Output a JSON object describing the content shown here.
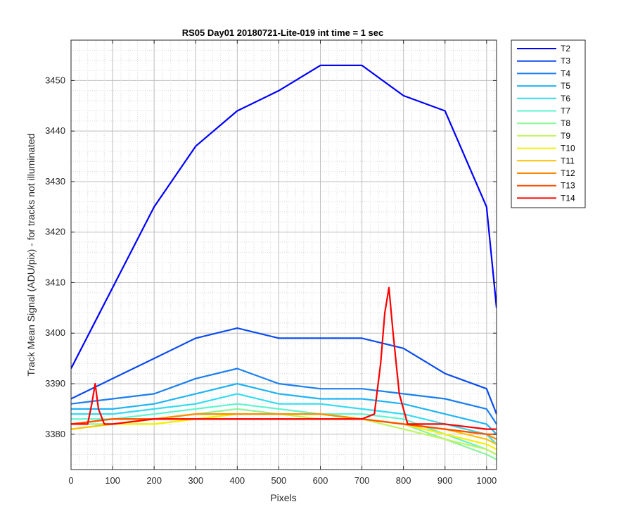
{
  "chart_data": {
    "type": "line",
    "title": "RS05 Day01 20180721-Lite-019 int time = 1 sec",
    "xlabel": "Pixels",
    "ylabel": "Track Mean Signal (ADU/pix) - for tracks not illuminated",
    "xlim": [
      0,
      1024
    ],
    "ylim": [
      3373,
      3458
    ],
    "x_ticks": [
      "0",
      "100",
      "200",
      "300",
      "400",
      "500",
      "600",
      "700",
      "800",
      "900",
      "1000"
    ],
    "y_ticks": [
      "3380",
      "3390",
      "3400",
      "3410",
      "3420",
      "3430",
      "3440",
      "3450"
    ],
    "grid": "major and minor (dotted)",
    "legend_position": "outside right, top",
    "series": [
      {
        "name": "T2",
        "color": "#0000ff",
        "x": [
          0,
          100,
          200,
          300,
          400,
          500,
          600,
          700,
          800,
          900,
          1000,
          1024
        ],
        "values": [
          3393,
          3409,
          3425,
          3437,
          3444,
          3448,
          3453,
          3453,
          3447,
          3444,
          3425,
          3405
        ]
      },
      {
        "name": "T3",
        "color": "#0b4cf0",
        "x": [
          0,
          100,
          200,
          300,
          400,
          500,
          600,
          700,
          800,
          900,
          1000,
          1024
        ],
        "values": [
          3387,
          3391,
          3395,
          3399,
          3401,
          3399,
          3399,
          3399,
          3397,
          3392,
          3389,
          3384
        ]
      },
      {
        "name": "T4",
        "color": "#1a7ff0",
        "x": [
          0,
          100,
          200,
          300,
          400,
          500,
          600,
          700,
          800,
          900,
          1000,
          1024
        ],
        "values": [
          3386,
          3387,
          3388,
          3391,
          3393,
          3390,
          3389,
          3389,
          3388,
          3387,
          3385,
          3382
        ]
      },
      {
        "name": "T5",
        "color": "#1fb4f5",
        "x": [
          0,
          100,
          200,
          300,
          400,
          500,
          600,
          700,
          800,
          900,
          1000,
          1024
        ],
        "values": [
          3385,
          3385,
          3386,
          3388,
          3390,
          3388,
          3387,
          3387,
          3386,
          3384,
          3382,
          3380
        ]
      },
      {
        "name": "T6",
        "color": "#34dcf2",
        "x": [
          0,
          100,
          200,
          300,
          400,
          500,
          600,
          700,
          800,
          900,
          1000,
          1024
        ],
        "values": [
          3384,
          3384,
          3385,
          3386,
          3388,
          3386,
          3386,
          3385,
          3384,
          3382,
          3380,
          3378
        ]
      },
      {
        "name": "T7",
        "color": "#5ef5cf",
        "x": [
          0,
          100,
          200,
          300,
          400,
          500,
          600,
          700,
          800,
          900,
          1000,
          1024
        ],
        "values": [
          3383,
          3383,
          3384,
          3385,
          3386,
          3385,
          3384,
          3384,
          3383,
          3380,
          3377,
          3376
        ]
      },
      {
        "name": "T8",
        "color": "#8af59e",
        "x": [
          0,
          100,
          200,
          300,
          400,
          500,
          600,
          700,
          800,
          900,
          1000,
          1024
        ],
        "values": [
          3382,
          3382,
          3383,
          3384,
          3385,
          3384,
          3384,
          3383,
          3382,
          3379,
          3376,
          3375
        ]
      },
      {
        "name": "T9",
        "color": "#c0f560",
        "x": [
          0,
          100,
          200,
          300,
          400,
          500,
          600,
          700,
          800,
          900,
          1000,
          1024
        ],
        "values": [
          3381,
          3382,
          3382,
          3383,
          3384,
          3384,
          3383,
          3383,
          3381,
          3379,
          3377,
          3376
        ]
      },
      {
        "name": "T10",
        "color": "#f5f000",
        "x": [
          0,
          100,
          200,
          300,
          400,
          500,
          600,
          700,
          800,
          900,
          1000,
          1024
        ],
        "values": [
          3381,
          3382,
          3382,
          3383,
          3384,
          3384,
          3384,
          3383,
          3382,
          3380,
          3378,
          3377
        ]
      },
      {
        "name": "T11",
        "color": "#ffc000",
        "x": [
          0,
          100,
          200,
          300,
          400,
          500,
          600,
          700,
          800,
          900,
          1000,
          1024
        ],
        "values": [
          3381,
          3382,
          3383,
          3384,
          3384,
          3384,
          3384,
          3383,
          3382,
          3381,
          3379,
          3378
        ]
      },
      {
        "name": "T12",
        "color": "#ff8c00",
        "x": [
          0,
          100,
          200,
          300,
          400,
          500,
          600,
          700,
          800,
          900,
          1000,
          1024
        ],
        "values": [
          3382,
          3383,
          3383,
          3384,
          3384,
          3384,
          3384,
          3383,
          3382,
          3381,
          3380,
          3379
        ]
      },
      {
        "name": "T13",
        "color": "#ff5000",
        "x": [
          0,
          100,
          200,
          300,
          400,
          500,
          600,
          700,
          800,
          900,
          1000,
          1024
        ],
        "values": [
          3382,
          3383,
          3383,
          3383,
          3383,
          3383,
          3383,
          3383,
          3382,
          3381,
          3380,
          3380
        ]
      },
      {
        "name": "T14",
        "color": "#ff0000",
        "x": [
          0,
          40,
          50,
          58,
          66,
          80,
          100,
          200,
          300,
          400,
          500,
          600,
          700,
          730,
          745,
          755,
          765,
          775,
          790,
          810,
          900,
          1000,
          1024
        ],
        "values": [
          3382,
          3382,
          3386,
          3390,
          3385,
          3382,
          3382,
          3383,
          3383,
          3383,
          3383,
          3383,
          3383,
          3384,
          3394,
          3404,
          3409,
          3400,
          3388,
          3382,
          3382,
          3381,
          3381
        ]
      }
    ]
  }
}
